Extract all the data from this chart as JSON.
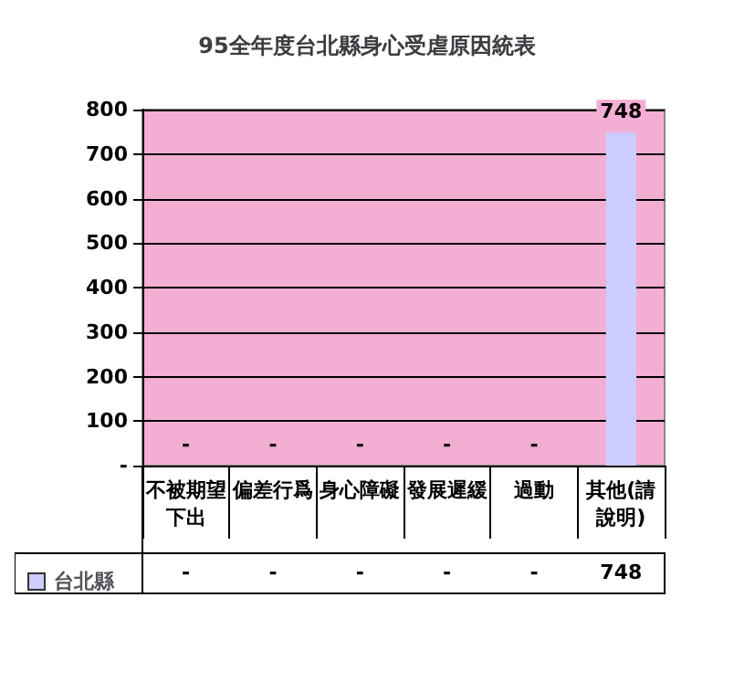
{
  "chart_data": {
    "type": "bar",
    "title": "95全年度台北縣身心受虐原因統表",
    "categories": [
      "不被期望下出",
      "偏差行爲",
      "身心障礙",
      "發展遲緩",
      "過動",
      "其他(請說明)"
    ],
    "series": [
      {
        "name": "台北縣",
        "color": "#ccccff",
        "values": [
          0,
          0,
          0,
          0,
          0,
          748
        ],
        "value_labels": [
          "-",
          "-",
          "-",
          "-",
          "-",
          "748"
        ]
      }
    ],
    "ylim": [
      0,
      800
    ],
    "yticks": [
      {
        "value": 0,
        "label": "-"
      },
      100,
      200,
      300,
      400,
      500,
      600,
      700,
      800
    ],
    "grid": "y",
    "legend": "bottom left"
  }
}
